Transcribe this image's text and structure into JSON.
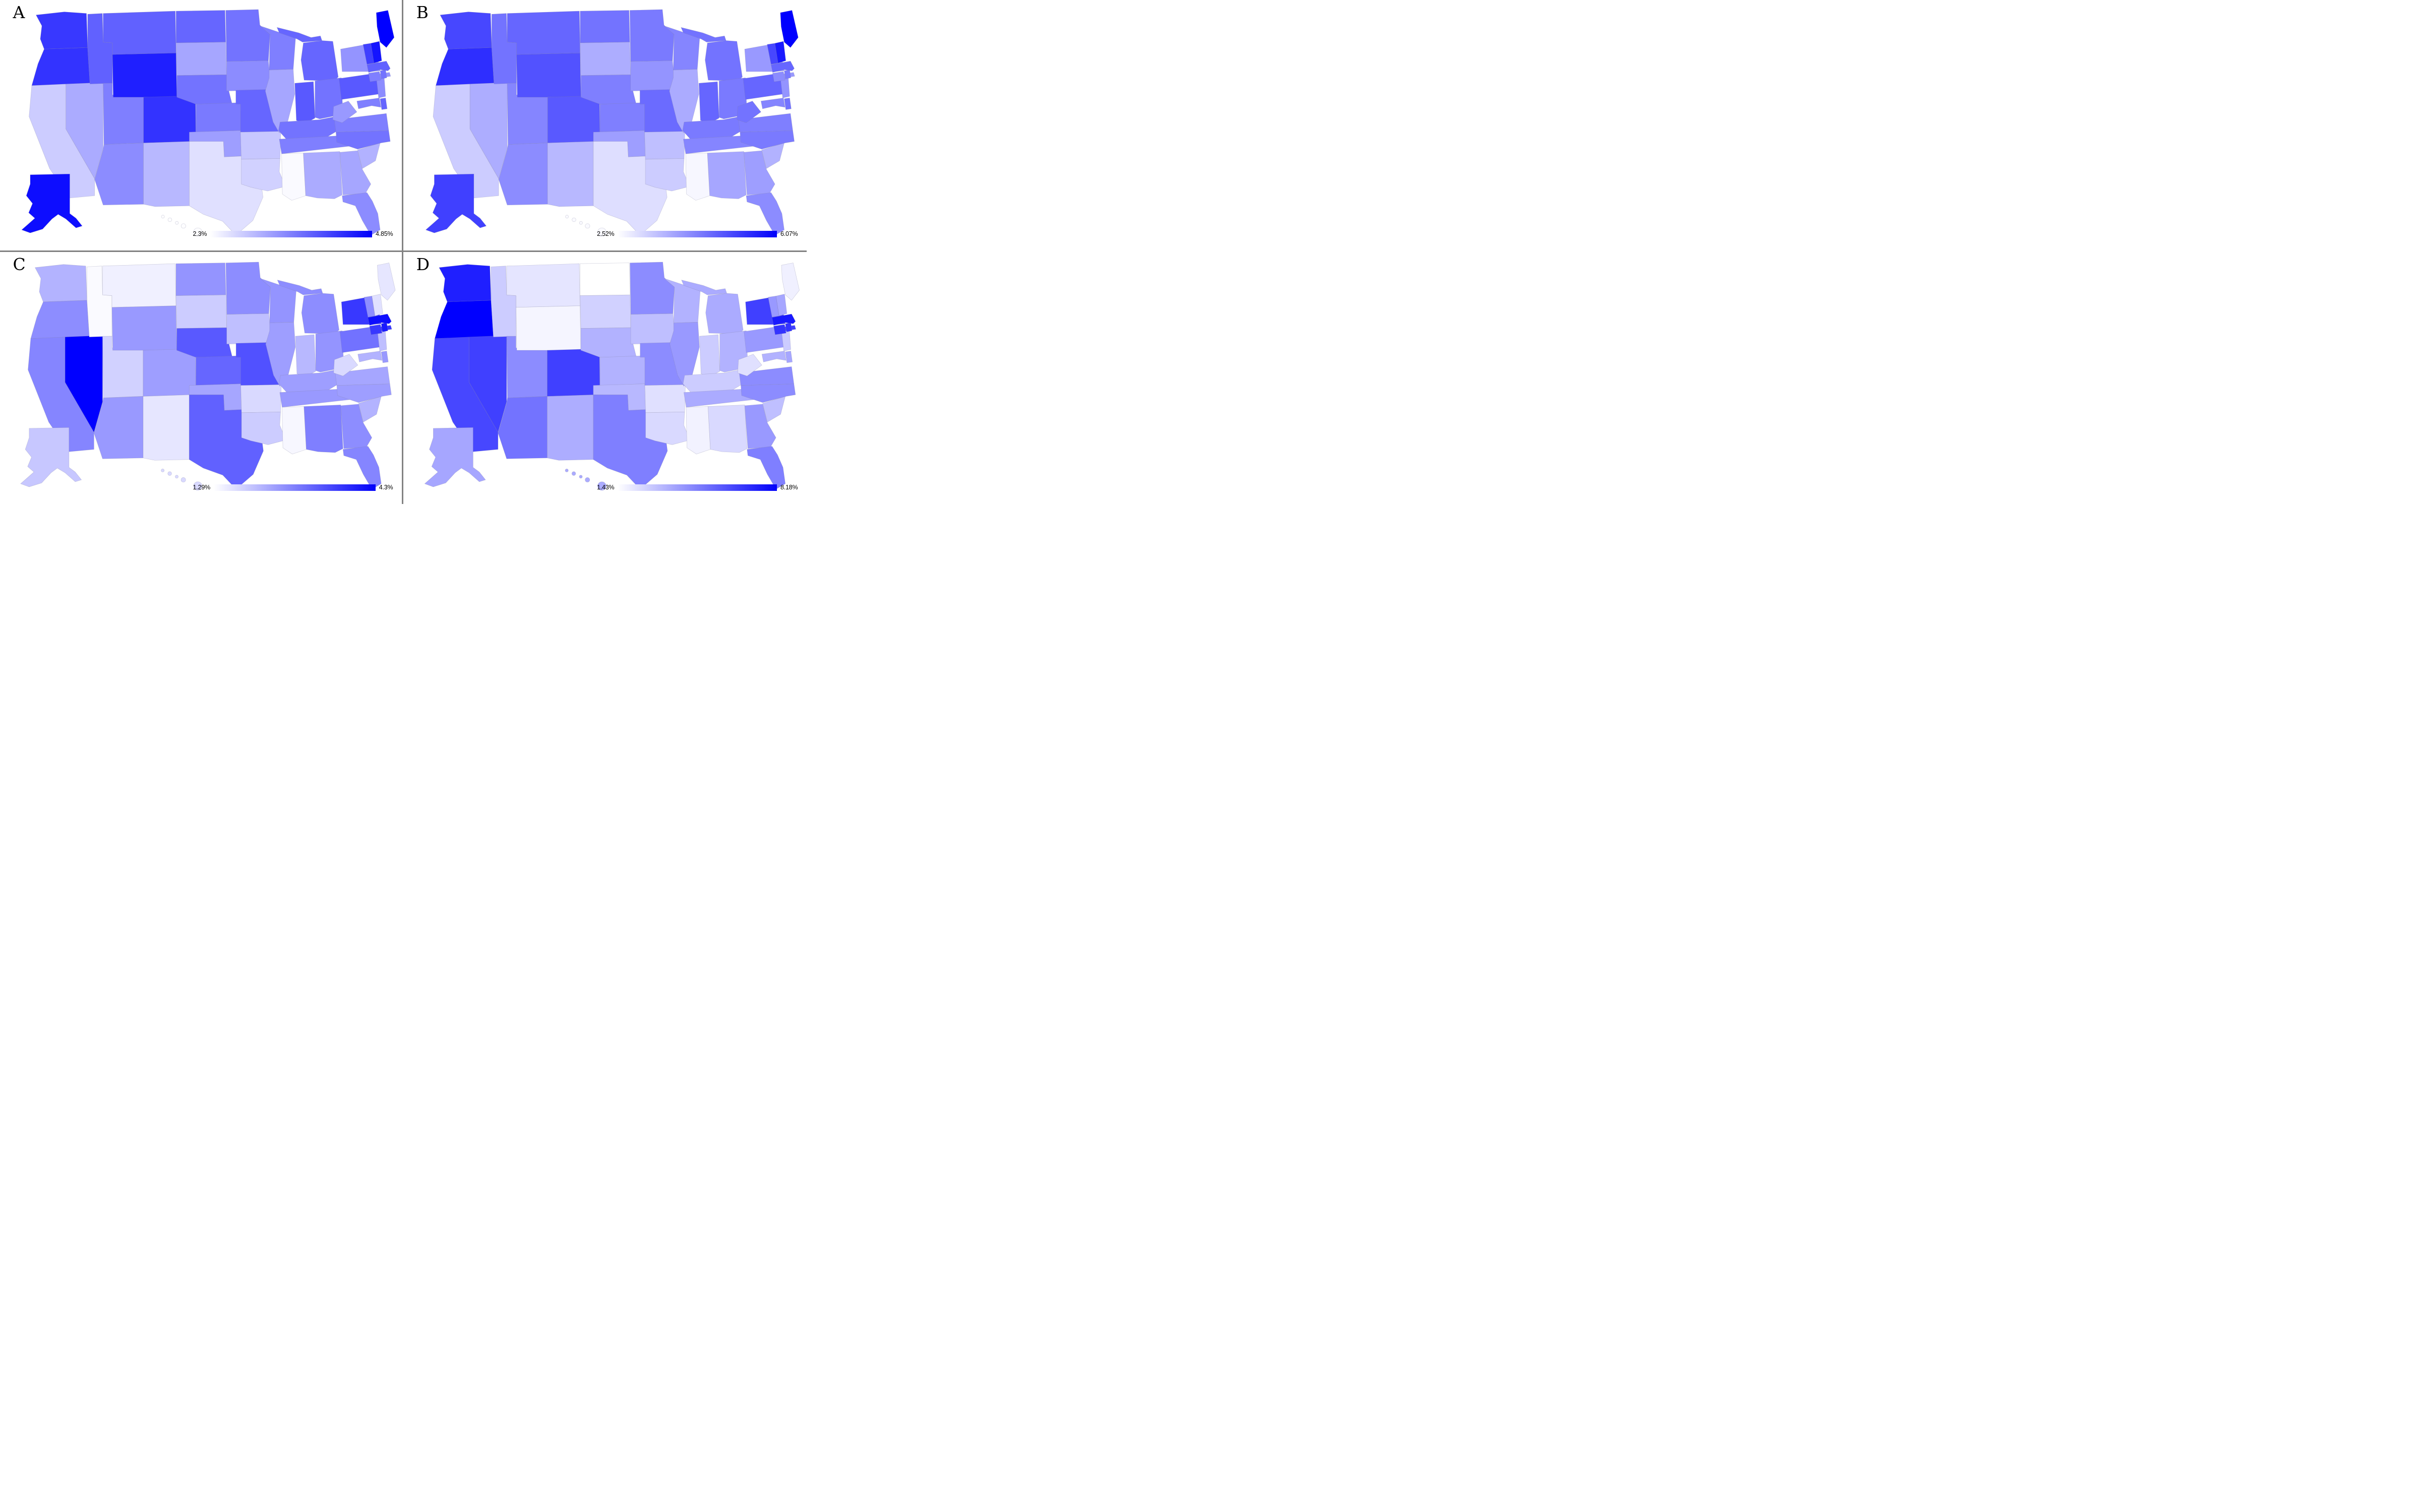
{
  "figure": {
    "background": "#ffffff",
    "divider_color": "#828282",
    "colormap_low": "#ffffff",
    "colormap_high": "#0000fa"
  },
  "chart_data": {
    "type": "choropleth",
    "map": "us-states-with-ak-hi-insets",
    "legend_position": "bottom-right-of-each-panel",
    "panels": [
      {
        "label": "A",
        "legend_min": 2.3,
        "legend_max": 4.85,
        "legend_min_label": "2.3%",
        "legend_max_label": "4.85%",
        "values": {
          "AK": 4.72,
          "AL": 3.14,
          "AR": 2.86,
          "AZ": 3.45,
          "CA": 2.81,
          "CO": 4.34,
          "CT": 3.58,
          "DE": 3.83,
          "FL": 3.45,
          "GA": 3.19,
          "HI": 2.32,
          "IA": 3.45,
          "ID": 3.88,
          "IL": 3.19,
          "IN": 3.96,
          "KS": 3.63,
          "KY": 3.7,
          "LA": 2.76,
          "MA": 3.88,
          "MD": 3.58,
          "ME": 4.85,
          "MI": 3.83,
          "MN": 3.7,
          "MO": 3.83,
          "MS": 2.35,
          "MT": 3.88,
          "NC": 3.7,
          "ND": 3.83,
          "NE": 3.7,
          "NH": 4.65,
          "NJ": 3.45,
          "NM": 3.01,
          "NV": 3.14,
          "NY": 3.37,
          "OH": 3.7,
          "OK": 3.27,
          "OR": 4.34,
          "PA": 3.96,
          "RI": 3.7,
          "SC": 3.07,
          "SD": 3.19,
          "TN": 3.58,
          "TX": 2.61,
          "UT": 3.58,
          "VA": 3.58,
          "VT": 4.21,
          "WA": 4.29,
          "WI": 3.58,
          "WV": 3.32,
          "WY": 4.54
        }
      },
      {
        "label": "B",
        "legend_min": 2.52,
        "legend_max": 6.07,
        "legend_min_label": "2.52%",
        "legend_max_label": "6.07%",
        "values": {
          "AK": 5.18,
          "AL": 3.76,
          "AR": 3.41,
          "AZ": 4.12,
          "CA": 3.23,
          "CO": 4.83,
          "CT": 4.12,
          "DE": 4.47,
          "FL": 4.12,
          "GA": 3.87,
          "HI": 2.59,
          "IA": 4.01,
          "ID": 4.47,
          "IL": 3.69,
          "IN": 4.65,
          "KS": 4.3,
          "KY": 4.37,
          "LA": 3.23,
          "MA": 4.65,
          "MD": 4.22,
          "ME": 6.07,
          "MI": 4.47,
          "MN": 4.37,
          "MO": 4.58,
          "MS": 2.63,
          "MT": 4.65,
          "NC": 4.37,
          "ND": 4.47,
          "NE": 4.3,
          "NH": 5.72,
          "NJ": 4.01,
          "NM": 3.51,
          "NV": 3.66,
          "NY": 3.94,
          "OH": 4.37,
          "OK": 3.87,
          "OR": 5.43,
          "PA": 4.65,
          "RI": 4.37,
          "SC": 3.59,
          "SD": 3.66,
          "TN": 4.22,
          "TX": 2.98,
          "UT": 4.22,
          "VA": 4.3,
          "VT": 5.08,
          "WA": 5.08,
          "WI": 4.22,
          "WV": 4.47,
          "WY": 4.93
        }
      },
      {
        "label": "C",
        "legend_min": 1.29,
        "legend_max": 4.3,
        "legend_min_label": "1.29%",
        "legend_max_label": "4.3%",
        "values": {
          "AK": 1.95,
          "AL": 2.8,
          "AR": 1.74,
          "AZ": 2.49,
          "CA": 2.73,
          "CO": 2.43,
          "CT": 3.64,
          "DE": 2.49,
          "FL": 2.73,
          "GA": 2.64,
          "HI": 1.74,
          "IA": 2.04,
          "ID": 1.35,
          "IL": 2.43,
          "IN": 2.13,
          "KS": 3.1,
          "KY": 2.43,
          "LA": 1.89,
          "MA": 4.15,
          "MD": 2.19,
          "ME": 1.59,
          "MI": 2.64,
          "MN": 2.64,
          "MO": 3.34,
          "MS": 1.38,
          "MT": 1.47,
          "NC": 2.43,
          "ND": 2.55,
          "NE": 3.25,
          "NH": 1.65,
          "NJ": 2.04,
          "NM": 1.59,
          "NV": 4.3,
          "NY": 3.64,
          "OH": 2.55,
          "OK": 2.34,
          "OR": 2.64,
          "PA": 2.95,
          "RI": 4.0,
          "SC": 2.19,
          "SD": 1.89,
          "TN": 2.49,
          "TX": 3.16,
          "UT": 1.83,
          "VA": 2.34,
          "VT": 2.64,
          "WA": 2.19,
          "WI": 2.55,
          "WV": 1.74,
          "WY": 2.49
        }
      },
      {
        "label": "D",
        "legend_min": 1.43,
        "legend_max": 8.18,
        "legend_min_label": "1.43%",
        "legend_max_label": "8.18%",
        "values": {
          "AK": 3.79,
          "AL": 2.44,
          "AR": 2.24,
          "AZ": 5.14,
          "CA": 6.29,
          "CO": 6.49,
          "CT": 6.83,
          "DE": 3.79,
          "FL": 4.81,
          "GA": 4.13,
          "HI": 3.66,
          "IA": 3.12,
          "ID": 2.78,
          "IL": 4.13,
          "IN": 2.78,
          "KS": 3.46,
          "KY": 2.78,
          "LA": 2.44,
          "MA": 7.51,
          "MD": 3.46,
          "ME": 1.84,
          "MI": 3.66,
          "MN": 4.47,
          "MO": 4.47,
          "MS": 1.77,
          "MT": 2.11,
          "NC": 4.47,
          "ND": 1.43,
          "NE": 3.46,
          "NH": 3.79,
          "NJ": 2.78,
          "NM": 3.59,
          "NV": 6.49,
          "NY": 6.49,
          "OH": 3.46,
          "OK": 3.32,
          "OR": 8.18,
          "PA": 4.13,
          "RI": 6.83,
          "SC": 3.12,
          "SD": 2.65,
          "TN": 3.66,
          "TX": 4.81,
          "UT": 4.47,
          "VA": 4.47,
          "VT": 4.13,
          "WA": 7.37,
          "WI": 3.46,
          "WV": 2.24,
          "WY": 1.7
        }
      }
    ]
  }
}
